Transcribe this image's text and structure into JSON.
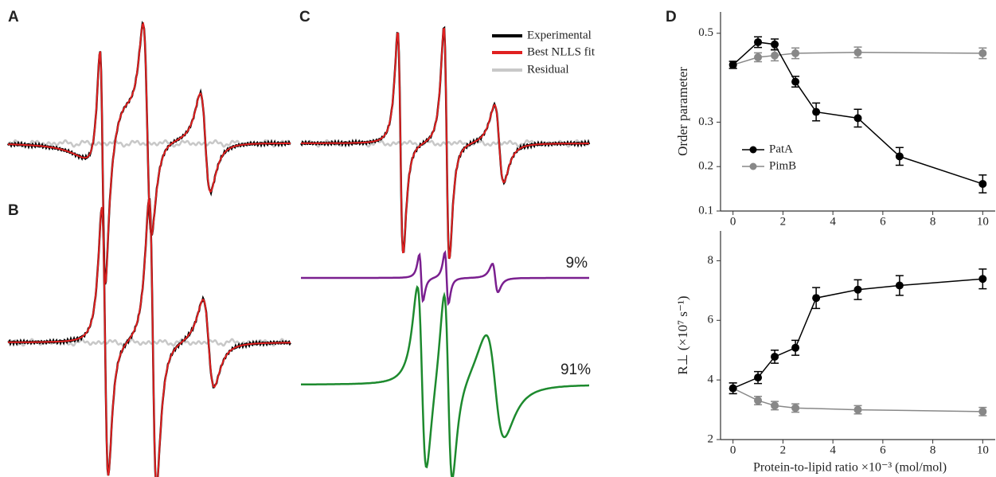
{
  "panel_labels": [
    "A",
    "B",
    "C",
    "D"
  ],
  "spectra": {
    "legend": [
      {
        "name": "Experimental",
        "color": "#000000"
      },
      {
        "name": "Best NLLS fit",
        "color": "#e02020"
      },
      {
        "name": "Residual",
        "color": "#c8c8c8"
      }
    ],
    "components": [
      {
        "label": "9%",
        "color": "#7a1f8f"
      },
      {
        "label": "91%",
        "color": "#1d8a2e"
      }
    ]
  },
  "chart_data": [
    {
      "type": "line",
      "y_label": "Order parameter",
      "x": [
        0,
        1,
        1.67,
        2.5,
        3.33,
        5,
        6.67,
        10
      ],
      "series": [
        {
          "name": "PatA",
          "color": "#000000",
          "values": [
            0.429,
            0.48,
            0.475,
            0.391,
            0.323,
            0.309,
            0.223,
            0.161
          ],
          "errors": [
            0.008,
            0.012,
            0.012,
            0.012,
            0.02,
            0.02,
            0.02,
            0.02
          ]
        },
        {
          "name": "PimB",
          "color": "#888888",
          "values": [
            0.429,
            0.446,
            0.45,
            0.455,
            null,
            0.457,
            null,
            0.455
          ],
          "errors": [
            0.008,
            0.01,
            0.012,
            0.012,
            null,
            0.012,
            null,
            0.012
          ]
        }
      ],
      "xlim": [
        -0.5,
        10.5
      ],
      "xticks": [
        0,
        2,
        4,
        6,
        8,
        10
      ],
      "ylim": [
        0.1,
        0.548
      ],
      "yticks": [
        0.1,
        0.2,
        0.3,
        0.5
      ],
      "legend": "lower left"
    },
    {
      "type": "line",
      "y_label": "R⊥ (×10⁷ s⁻¹)",
      "x_label": "Protein-to-lipid ratio ×10⁻³ (mol/mol)",
      "x": [
        0,
        1,
        1.67,
        2.5,
        3.33,
        5,
        6.67,
        10
      ],
      "series": [
        {
          "name": "PatA",
          "color": "#000000",
          "values": [
            3.72,
            4.08,
            4.78,
            5.08,
            6.75,
            7.03,
            7.17,
            7.39
          ],
          "errors": [
            0.18,
            0.2,
            0.22,
            0.25,
            0.35,
            0.33,
            0.33,
            0.33
          ]
        },
        {
          "name": "PimB",
          "color": "#888888",
          "values": [
            3.72,
            3.31,
            3.14,
            3.06,
            null,
            3.0,
            null,
            2.94
          ],
          "errors": [
            0.18,
            0.14,
            0.14,
            0.14,
            null,
            0.14,
            null,
            0.14
          ]
        }
      ],
      "xlim": [
        -0.5,
        10.5
      ],
      "xticks": [
        0,
        2,
        4,
        6,
        8,
        10
      ],
      "ylim": [
        2,
        9
      ],
      "yticks": [
        2,
        4,
        6,
        8
      ]
    }
  ]
}
